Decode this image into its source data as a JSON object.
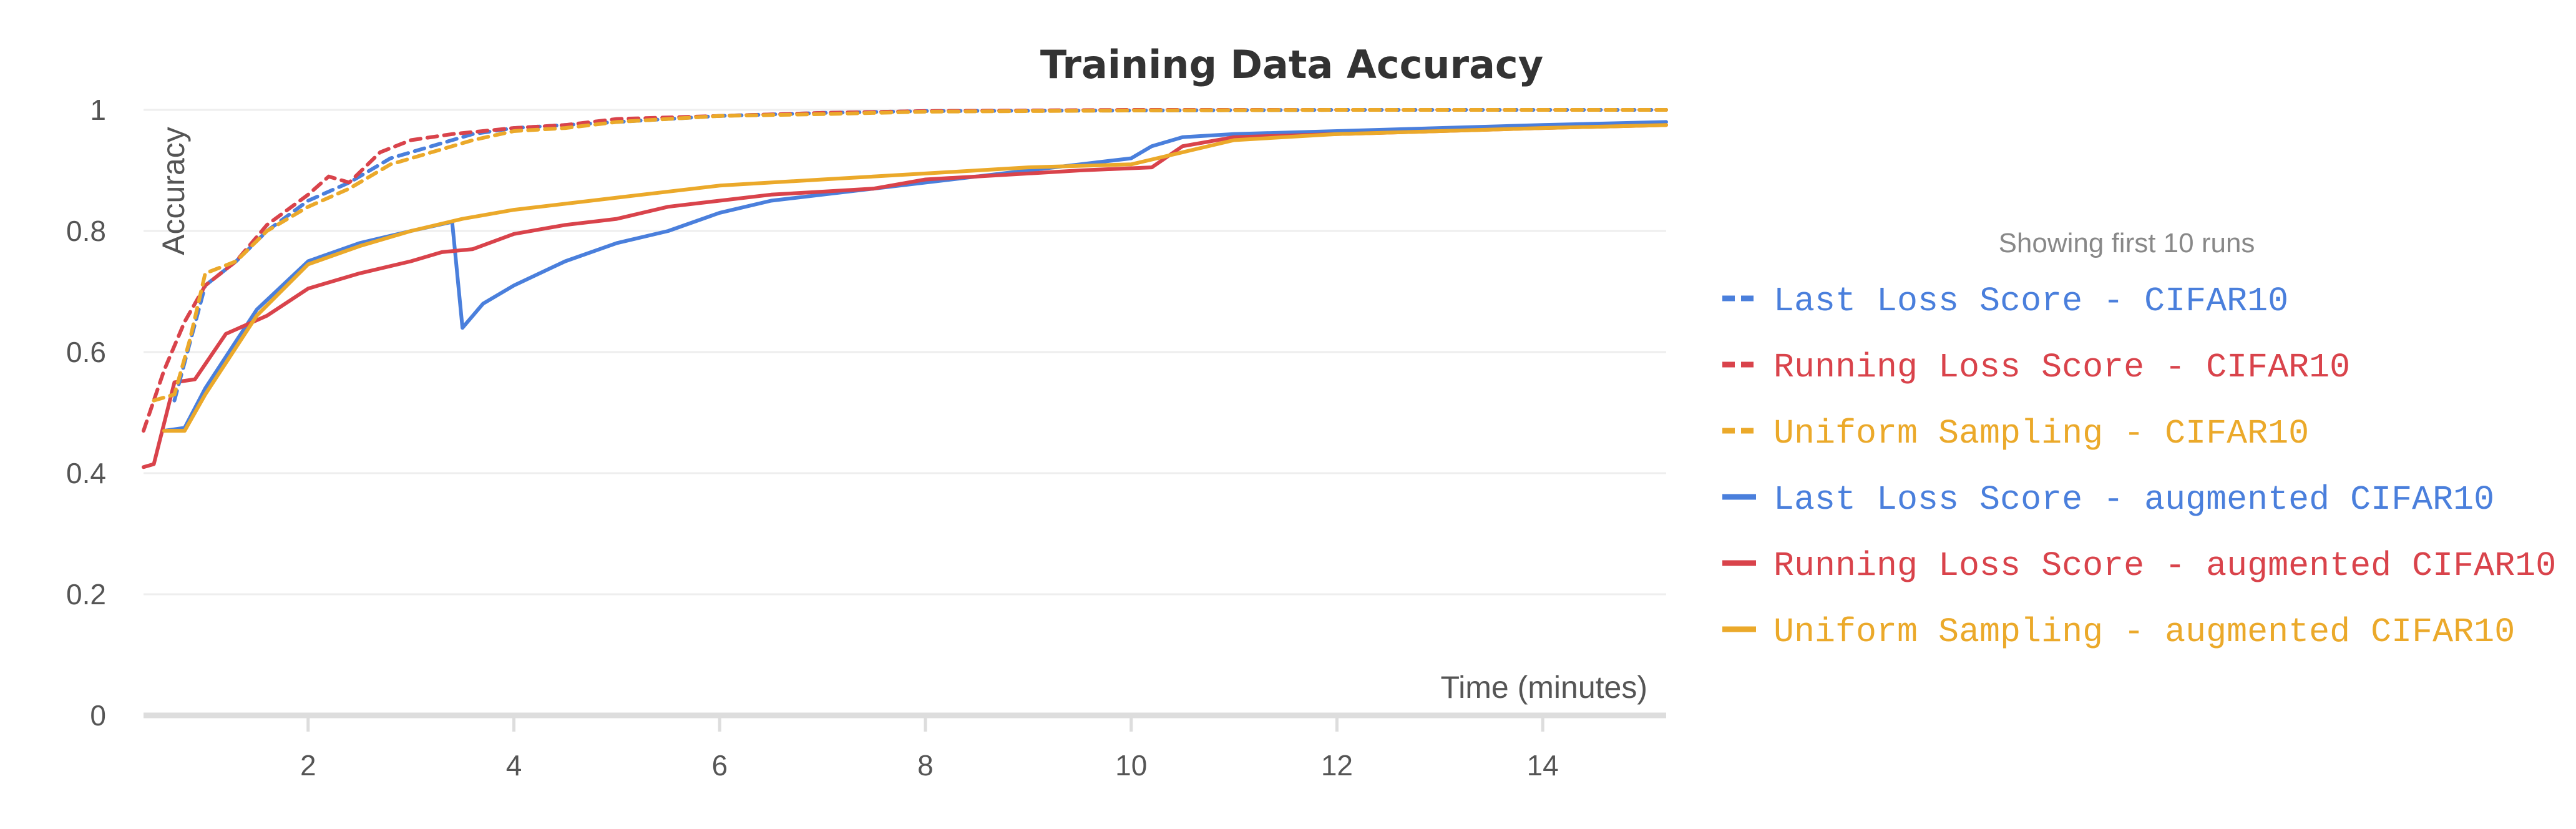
{
  "chart_data": {
    "type": "line",
    "title": "Training Data Accuracy",
    "xlabel": "Time (minutes)",
    "ylabel": "Accuracy",
    "xlim": [
      0.4,
      15.2
    ],
    "ylim": [
      0,
      1
    ],
    "x_ticks": [
      "2",
      "4",
      "6",
      "8",
      "10",
      "12",
      "14"
    ],
    "y_ticks": [
      "0",
      "0.2",
      "0.4",
      "0.6",
      "0.8",
      "1"
    ],
    "grid": true,
    "legend": {
      "title": "Showing first 10 runs",
      "placement": "right"
    },
    "series": [
      {
        "name": "Last Loss Score - CIFAR10",
        "color": "#4a7fdc",
        "dash": "dashed",
        "points": [
          [
            0.7,
            0.52
          ],
          [
            1.0,
            0.71
          ],
          [
            1.3,
            0.75
          ],
          [
            1.6,
            0.8
          ],
          [
            2.0,
            0.85
          ],
          [
            2.4,
            0.88
          ],
          [
            2.8,
            0.92
          ],
          [
            3.2,
            0.94
          ],
          [
            3.6,
            0.96
          ],
          [
            4.0,
            0.97
          ],
          [
            4.5,
            0.975
          ],
          [
            5.0,
            0.98
          ],
          [
            6.0,
            0.99
          ],
          [
            7.0,
            0.995
          ],
          [
            8.0,
            0.998
          ],
          [
            10.0,
            0.999
          ],
          [
            12.0,
            1.0
          ],
          [
            15.2,
            1.0
          ]
        ]
      },
      {
        "name": "Running Loss Score - CIFAR10",
        "color": "#d9434b",
        "dash": "dashed",
        "points": [
          [
            0.4,
            0.47
          ],
          [
            0.6,
            0.57
          ],
          [
            0.8,
            0.65
          ],
          [
            1.0,
            0.71
          ],
          [
            1.3,
            0.75
          ],
          [
            1.6,
            0.81
          ],
          [
            2.0,
            0.86
          ],
          [
            2.2,
            0.89
          ],
          [
            2.4,
            0.88
          ],
          [
            2.7,
            0.93
          ],
          [
            3.0,
            0.95
          ],
          [
            3.4,
            0.96
          ],
          [
            4.0,
            0.97
          ],
          [
            4.5,
            0.975
          ],
          [
            5.0,
            0.985
          ],
          [
            6.0,
            0.99
          ],
          [
            7.0,
            0.995
          ],
          [
            8.0,
            0.998
          ],
          [
            10.0,
            1.0
          ],
          [
            15.2,
            1.0
          ]
        ]
      },
      {
        "name": "Uniform Sampling - CIFAR10",
        "color": "#eba92a",
        "dash": "dashed",
        "points": [
          [
            0.5,
            0.52
          ],
          [
            0.7,
            0.53
          ],
          [
            0.85,
            0.62
          ],
          [
            1.0,
            0.73
          ],
          [
            1.3,
            0.75
          ],
          [
            1.6,
            0.8
          ],
          [
            2.0,
            0.84
          ],
          [
            2.4,
            0.87
          ],
          [
            2.8,
            0.91
          ],
          [
            3.2,
            0.93
          ],
          [
            3.6,
            0.95
          ],
          [
            4.0,
            0.965
          ],
          [
            4.5,
            0.97
          ],
          [
            5.0,
            0.98
          ],
          [
            6.0,
            0.99
          ],
          [
            7.0,
            0.993
          ],
          [
            8.0,
            0.997
          ],
          [
            10.0,
            0.999
          ],
          [
            12.0,
            1.0
          ],
          [
            15.2,
            1.0
          ]
        ]
      },
      {
        "name": "Last Loss Score - augmented CIFAR10",
        "color": "#4a7fdc",
        "dash": "solid",
        "points": [
          [
            0.6,
            0.47
          ],
          [
            0.8,
            0.475
          ],
          [
            1.0,
            0.54
          ],
          [
            1.5,
            0.67
          ],
          [
            2.0,
            0.75
          ],
          [
            2.5,
            0.78
          ],
          [
            3.0,
            0.8
          ],
          [
            3.4,
            0.815
          ],
          [
            3.5,
            0.64
          ],
          [
            3.7,
            0.68
          ],
          [
            4.0,
            0.71
          ],
          [
            4.5,
            0.75
          ],
          [
            5.0,
            0.78
          ],
          [
            5.5,
            0.8
          ],
          [
            6.0,
            0.83
          ],
          [
            6.5,
            0.85
          ],
          [
            7.0,
            0.86
          ],
          [
            7.5,
            0.87
          ],
          [
            8.0,
            0.88
          ],
          [
            8.5,
            0.89
          ],
          [
            9.0,
            0.9
          ],
          [
            9.5,
            0.91
          ],
          [
            10.0,
            0.92
          ],
          [
            10.2,
            0.94
          ],
          [
            10.5,
            0.955
          ],
          [
            11.0,
            0.96
          ],
          [
            12.0,
            0.965
          ],
          [
            13.0,
            0.97
          ],
          [
            14.0,
            0.975
          ],
          [
            15.2,
            0.98
          ]
        ]
      },
      {
        "name": "Running Loss Score - augmented CIFAR10",
        "color": "#d9434b",
        "dash": "solid",
        "points": [
          [
            0.4,
            0.41
          ],
          [
            0.5,
            0.415
          ],
          [
            0.7,
            0.55
          ],
          [
            0.9,
            0.555
          ],
          [
            1.2,
            0.63
          ],
          [
            1.6,
            0.66
          ],
          [
            2.0,
            0.705
          ],
          [
            2.5,
            0.73
          ],
          [
            3.0,
            0.75
          ],
          [
            3.3,
            0.765
          ],
          [
            3.6,
            0.77
          ],
          [
            4.0,
            0.795
          ],
          [
            4.5,
            0.81
          ],
          [
            5.0,
            0.82
          ],
          [
            5.5,
            0.84
          ],
          [
            6.0,
            0.85
          ],
          [
            6.5,
            0.86
          ],
          [
            7.0,
            0.865
          ],
          [
            7.5,
            0.87
          ],
          [
            8.0,
            0.885
          ],
          [
            8.5,
            0.89
          ],
          [
            9.0,
            0.895
          ],
          [
            9.5,
            0.9
          ],
          [
            10.2,
            0.905
          ],
          [
            10.5,
            0.94
          ],
          [
            11.0,
            0.955
          ],
          [
            12.0,
            0.96
          ],
          [
            13.0,
            0.965
          ],
          [
            14.0,
            0.97
          ],
          [
            15.2,
            0.975
          ]
        ]
      },
      {
        "name": "Uniform Sampling - augmented CIFAR10",
        "color": "#eba92a",
        "dash": "solid",
        "points": [
          [
            0.6,
            0.47
          ],
          [
            0.8,
            0.47
          ],
          [
            1.0,
            0.53
          ],
          [
            1.5,
            0.66
          ],
          [
            2.0,
            0.745
          ],
          [
            2.5,
            0.775
          ],
          [
            3.0,
            0.8
          ],
          [
            3.5,
            0.82
          ],
          [
            4.0,
            0.835
          ],
          [
            5.0,
            0.855
          ],
          [
            6.0,
            0.875
          ],
          [
            7.0,
            0.885
          ],
          [
            8.0,
            0.895
          ],
          [
            9.0,
            0.905
          ],
          [
            10.0,
            0.91
          ],
          [
            10.5,
            0.93
          ],
          [
            11.0,
            0.95
          ],
          [
            12.0,
            0.96
          ],
          [
            13.0,
            0.965
          ],
          [
            14.0,
            0.97
          ],
          [
            15.2,
            0.975
          ]
        ]
      }
    ]
  }
}
